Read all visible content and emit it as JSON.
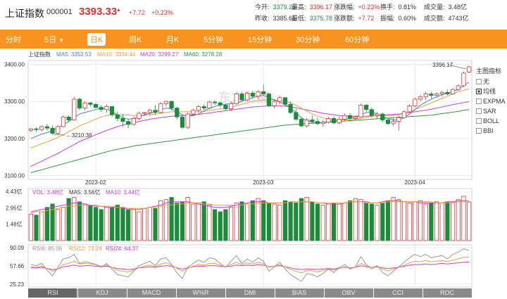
{
  "header": {
    "title": "上证指数",
    "code": "000001",
    "price": "3393.33",
    "change": "+7.72",
    "change_pct": "+0.23%",
    "stats": [
      {
        "key": "今开:",
        "value": "3379.23",
        "color": "green"
      },
      {
        "key": "最高:",
        "value": "3396.17",
        "color": "red"
      },
      {
        "key": "涨跌幅:",
        "value": "+0.23%",
        "color": "red"
      },
      {
        "key": "换手:",
        "value": "0.81%",
        "color": "blk"
      },
      {
        "key": "成交量:",
        "value": "3.48亿",
        "color": "blk"
      },
      {
        "key": "昨收:",
        "value": "3385.61",
        "color": "blk"
      },
      {
        "key": "最低:",
        "value": "3375.78",
        "color": "green"
      },
      {
        "key": "涨跌额:",
        "value": "+7.72",
        "color": "red"
      },
      {
        "key": "振幅:",
        "value": "0.60%",
        "color": "blk"
      },
      {
        "key": "成交额:",
        "value": "4743亿",
        "color": "blk"
      }
    ]
  },
  "tabs": [
    {
      "label": "分时"
    },
    {
      "label": "5日",
      "caret": "▼"
    },
    {
      "label": "日K",
      "active": true
    },
    {
      "label": "周K"
    },
    {
      "label": "月K"
    },
    {
      "label": "5分钟"
    },
    {
      "label": "15分钟"
    },
    {
      "label": "30分钟"
    },
    {
      "label": "60分钟"
    }
  ],
  "main_legend": {
    "name": "上证指数",
    "ma5": "MA5: 3352.53",
    "ma10": "MA10: 3334.44",
    "ma20": "MA20: 3299.27",
    "ma60": "MA60: 3278.28"
  },
  "vol_legend": {
    "vol": "VOL: 3.48亿",
    "ma5": "MA5: 3.56亿",
    "ma10": "MA10: 3.44亿"
  },
  "rsi_legend": {
    "rsi6": "RSI6: 85.06",
    "rsi12": "RSI12: 73.24",
    "rsi24": "RSI24: 64.37"
  },
  "annotations": {
    "high": "3396.17",
    "low": "3210.38"
  },
  "watermark": "东方财富",
  "side_panel": {
    "title": "主图指标",
    "items": [
      {
        "label": "无",
        "checked": false
      },
      {
        "label": "均线",
        "checked": true
      },
      {
        "label": "EXPMA",
        "checked": false
      },
      {
        "label": "SAR",
        "checked": false
      },
      {
        "label": "BOLL",
        "checked": false
      },
      {
        "label": "BBI",
        "checked": false
      }
    ]
  },
  "indicator_tabs": [
    "RSI",
    "KDJ",
    "MACD",
    "W%R",
    "DMI",
    "BIAS",
    "OBV",
    "CCI",
    "ROC"
  ],
  "colors": {
    "up": "#e03030",
    "down": "#1a8c3a",
    "accent": "#f7931e",
    "ma5": "#4a7fd6",
    "ma10": "#e8a23c",
    "ma20": "#d63ad6",
    "ma60": "#2e9a3a"
  },
  "chart_data": {
    "type": "candlestick",
    "price_axis": {
      "ticks": [
        "3400.00",
        "3300.00",
        "3200.00",
        "3100.00"
      ],
      "range": [
        3090,
        3410
      ]
    },
    "volume_axis": {
      "ticks": [
        "4.43亿",
        "2.95亿",
        "1.48亿"
      ]
    },
    "rsi_axis": {
      "ticks": [
        "90.09",
        "57.66",
        "25.23"
      ]
    },
    "x_labels": [
      "2023-02",
      "2023-03",
      "2023-04"
    ],
    "candles": [
      [
        3222,
        3228,
        3217,
        3226
      ],
      [
        3226,
        3230,
        3218,
        3224
      ],
      [
        3224,
        3236,
        3220,
        3232
      ],
      [
        3232,
        3240,
        3222,
        3228
      ],
      [
        3228,
        3235,
        3210,
        3214
      ],
      [
        3214,
        3236,
        3210,
        3232
      ],
      [
        3232,
        3262,
        3230,
        3258
      ],
      [
        3258,
        3262,
        3244,
        3250
      ],
      [
        3250,
        3312,
        3248,
        3306
      ],
      [
        3306,
        3310,
        3276,
        3282
      ],
      [
        3282,
        3300,
        3276,
        3296
      ],
      [
        3296,
        3298,
        3286,
        3292
      ],
      [
        3292,
        3296,
        3280,
        3284
      ],
      [
        3284,
        3290,
        3272,
        3278
      ],
      [
        3278,
        3292,
        3270,
        3286
      ],
      [
        3286,
        3288,
        3258,
        3264
      ],
      [
        3264,
        3272,
        3246,
        3254
      ],
      [
        3254,
        3266,
        3232,
        3246
      ],
      [
        3246,
        3252,
        3228,
        3238
      ],
      [
        3238,
        3258,
        3236,
        3254
      ],
      [
        3254,
        3272,
        3250,
        3268
      ],
      [
        3268,
        3272,
        3260,
        3270
      ],
      [
        3270,
        3280,
        3262,
        3276
      ],
      [
        3276,
        3290,
        3264,
        3270
      ],
      [
        3270,
        3298,
        3268,
        3294
      ],
      [
        3294,
        3302,
        3286,
        3300
      ],
      [
        3300,
        3302,
        3276,
        3282
      ],
      [
        3282,
        3286,
        3252,
        3258
      ],
      [
        3258,
        3262,
        3226,
        3230
      ],
      [
        3230,
        3270,
        3226,
        3266
      ],
      [
        3266,
        3280,
        3260,
        3276
      ],
      [
        3276,
        3290,
        3270,
        3286
      ],
      [
        3286,
        3292,
        3276,
        3282
      ],
      [
        3282,
        3302,
        3278,
        3298
      ],
      [
        3298,
        3304,
        3290,
        3296
      ],
      [
        3296,
        3300,
        3284,
        3290
      ],
      [
        3290,
        3294,
        3276,
        3280
      ],
      [
        3280,
        3300,
        3274,
        3294
      ],
      [
        3294,
        3324,
        3290,
        3320
      ],
      [
        3320,
        3326,
        3300,
        3304
      ],
      [
        3304,
        3326,
        3300,
        3322
      ],
      [
        3322,
        3328,
        3308,
        3314
      ],
      [
        3314,
        3330,
        3306,
        3326
      ],
      [
        3326,
        3346,
        3318,
        3320
      ],
      [
        3320,
        3324,
        3284,
        3288
      ],
      [
        3288,
        3306,
        3282,
        3300
      ],
      [
        3300,
        3316,
        3292,
        3310
      ],
      [
        3310,
        3312,
        3286,
        3292
      ],
      [
        3292,
        3300,
        3266,
        3270
      ],
      [
        3270,
        3280,
        3248,
        3252
      ],
      [
        3252,
        3258,
        3230,
        3234
      ],
      [
        3234,
        3256,
        3230,
        3250
      ],
      [
        3250,
        3262,
        3240,
        3246
      ],
      [
        3246,
        3256,
        3236,
        3240
      ],
      [
        3240,
        3250,
        3232,
        3244
      ],
      [
        3244,
        3258,
        3240,
        3254
      ],
      [
        3254,
        3260,
        3238,
        3242
      ],
      [
        3242,
        3258,
        3238,
        3252
      ],
      [
        3252,
        3268,
        3248,
        3262
      ],
      [
        3262,
        3268,
        3246,
        3254
      ],
      [
        3254,
        3262,
        3248,
        3258
      ],
      [
        3258,
        3294,
        3256,
        3290
      ],
      [
        3290,
        3292,
        3272,
        3278
      ],
      [
        3278,
        3284,
        3256,
        3262
      ],
      [
        3262,
        3272,
        3252,
        3266
      ],
      [
        3266,
        3270,
        3244,
        3250
      ],
      [
        3250,
        3256,
        3236,
        3240
      ],
      [
        3240,
        3254,
        3234,
        3246
      ],
      [
        3246,
        3262,
        3222,
        3256
      ],
      [
        3256,
        3276,
        3254,
        3272
      ],
      [
        3272,
        3292,
        3268,
        3288
      ],
      [
        3288,
        3310,
        3284,
        3306
      ],
      [
        3306,
        3318,
        3300,
        3312
      ],
      [
        3312,
        3326,
        3304,
        3320
      ],
      [
        3320,
        3326,
        3308,
        3316
      ],
      [
        3316,
        3324,
        3310,
        3320
      ],
      [
        3320,
        3328,
        3312,
        3324
      ],
      [
        3324,
        3332,
        3316,
        3320
      ],
      [
        3320,
        3336,
        3318,
        3332
      ],
      [
        3332,
        3346,
        3328,
        3342
      ],
      [
        3342,
        3380,
        3338,
        3376
      ],
      [
        3379,
        3396,
        3376,
        3393
      ]
    ],
    "ma5": [
      3200,
      3206,
      3212,
      3216,
      3222,
      3228,
      3238,
      3246,
      3256,
      3266,
      3270,
      3274,
      3278,
      3282,
      3280,
      3272,
      3264,
      3256,
      3252,
      3254,
      3258,
      3264,
      3268,
      3272,
      3278,
      3282,
      3280,
      3272,
      3264,
      3260,
      3262,
      3266,
      3274,
      3282,
      3286,
      3290,
      3292,
      3294,
      3296,
      3300,
      3306,
      3310,
      3314,
      3316,
      3310,
      3304,
      3298,
      3292,
      3282,
      3270,
      3256,
      3248,
      3244,
      3242,
      3244,
      3246,
      3248,
      3250,
      3252,
      3254,
      3258,
      3264,
      3270,
      3272,
      3266,
      3260,
      3254,
      3250,
      3250,
      3256,
      3266,
      3278,
      3290,
      3298,
      3306,
      3312,
      3318,
      3322,
      3326,
      3332,
      3342,
      3352
    ],
    "ma10": [
      3175,
      3180,
      3186,
      3191,
      3197,
      3203,
      3210,
      3218,
      3226,
      3234,
      3240,
      3246,
      3252,
      3258,
      3262,
      3264,
      3264,
      3264,
      3263,
      3262,
      3262,
      3263,
      3264,
      3266,
      3268,
      3270,
      3272,
      3272,
      3272,
      3272,
      3272,
      3272,
      3273,
      3275,
      3278,
      3280,
      3282,
      3284,
      3288,
      3292,
      3296,
      3300,
      3302,
      3304,
      3304,
      3304,
      3303,
      3300,
      3296,
      3290,
      3282,
      3274,
      3266,
      3260,
      3256,
      3252,
      3250,
      3250,
      3250,
      3250,
      3252,
      3254,
      3257,
      3260,
      3262,
      3262,
      3262,
      3262,
      3264,
      3268,
      3272,
      3278,
      3284,
      3290,
      3296,
      3302,
      3308,
      3314,
      3320,
      3326,
      3330,
      3334
    ],
    "ma20": [
      3125,
      3132,
      3139,
      3146,
      3153,
      3160,
      3168,
      3176,
      3184,
      3192,
      3198,
      3204,
      3210,
      3216,
      3222,
      3227,
      3232,
      3236,
      3240,
      3243,
      3246,
      3249,
      3252,
      3254,
      3256,
      3258,
      3260,
      3261,
      3262,
      3263,
      3264,
      3265,
      3267,
      3269,
      3271,
      3273,
      3275,
      3277,
      3279,
      3281,
      3283,
      3285,
      3286,
      3287,
      3288,
      3288,
      3288,
      3287,
      3285,
      3283,
      3280,
      3277,
      3274,
      3271,
      3268,
      3266,
      3264,
      3262,
      3261,
      3260,
      3260,
      3260,
      3260,
      3261,
      3262,
      3263,
      3264,
      3265,
      3266,
      3268,
      3270,
      3272,
      3274,
      3276,
      3279,
      3282,
      3285,
      3288,
      3291,
      3294,
      3297,
      3299
    ],
    "ma60": [
      3108,
      3112,
      3116,
      3120,
      3124,
      3128,
      3132,
      3136,
      3140,
      3144,
      3148,
      3152,
      3156,
      3160,
      3164,
      3168,
      3171,
      3174,
      3177,
      3180,
      3182,
      3184,
      3186,
      3188,
      3190,
      3192,
      3194,
      3196,
      3198,
      3200,
      3202,
      3204,
      3206,
      3208,
      3210,
      3212,
      3214,
      3216,
      3218,
      3220,
      3222,
      3224,
      3226,
      3228,
      3230,
      3232,
      3234,
      3236,
      3237,
      3238,
      3239,
      3240,
      3241,
      3242,
      3243,
      3244,
      3245,
      3246,
      3247,
      3248,
      3249,
      3250,
      3251,
      3252,
      3253,
      3254,
      3255,
      3256,
      3257,
      3258,
      3259,
      3260,
      3261,
      3262,
      3263,
      3265,
      3267,
      3269,
      3271,
      3273,
      3276,
      3278
    ],
    "volumes": [
      2.4,
      2.3,
      2.6,
      3.0,
      3.3,
      2.8,
      3.0,
      3.8,
      3.9,
      3.5,
      3.3,
      3.2,
      3.0,
      2.8,
      3.1,
      3.0,
      3.2,
      3.0,
      2.8,
      2.9,
      2.6,
      2.9,
      3.0,
      2.9,
      3.6,
      3.7,
      3.9,
      3.4,
      3.5,
      3.9,
      3.3,
      3.4,
      3.5,
      3.2,
      2.8,
      2.6,
      2.8,
      3.0,
      3.4,
      3.5,
      3.3,
      3.6,
      3.8,
      3.6,
      3.4,
      3.3,
      3.2,
      3.6,
      3.5,
      3.4,
      3.8,
      3.9,
      3.5,
      3.3,
      3.2,
      3.3,
      3.4,
      3.3,
      3.4,
      3.6,
      3.8,
      3.7,
      3.4,
      3.3,
      3.2,
      3.4,
      3.6,
      3.9,
      3.7,
      3.5,
      3.4,
      3.5,
      3.6,
      3.3,
      3.4,
      3.5,
      3.4,
      3.5,
      3.5,
      3.7,
      4.0,
      3.48
    ],
    "vol_ma5": [
      2.6,
      2.7,
      2.8,
      2.9,
      3.0,
      3.1,
      3.2,
      3.3,
      3.4,
      3.4,
      3.3,
      3.2,
      3.1,
      3.1,
      3.0,
      3.0,
      3.0,
      2.9,
      2.9,
      2.8,
      2.8,
      2.9,
      3.0,
      3.1,
      3.2,
      3.4,
      3.5,
      3.5,
      3.5,
      3.5,
      3.4,
      3.3,
      3.2,
      3.1,
      3.0,
      3.0,
      3.0,
      3.1,
      3.2,
      3.3,
      3.4,
      3.5,
      3.5,
      3.5,
      3.4,
      3.4,
      3.4,
      3.4,
      3.5,
      3.5,
      3.5,
      3.5,
      3.5,
      3.4,
      3.4,
      3.3,
      3.3,
      3.3,
      3.4,
      3.5,
      3.5,
      3.5,
      3.5,
      3.4,
      3.4,
      3.5,
      3.6,
      3.6,
      3.6,
      3.5,
      3.5,
      3.5,
      3.4,
      3.4,
      3.4,
      3.4,
      3.4,
      3.5,
      3.5,
      3.6,
      3.6,
      3.56
    ],
    "vol_ma10": [
      2.5,
      2.6,
      2.6,
      2.7,
      2.8,
      2.9,
      3.0,
      3.1,
      3.1,
      3.2,
      3.2,
      3.2,
      3.2,
      3.1,
      3.1,
      3.1,
      3.0,
      3.0,
      2.9,
      2.9,
      2.9,
      2.9,
      3.0,
      3.0,
      3.1,
      3.2,
      3.2,
      3.3,
      3.3,
      3.4,
      3.4,
      3.4,
      3.3,
      3.3,
      3.2,
      3.2,
      3.2,
      3.2,
      3.2,
      3.2,
      3.3,
      3.3,
      3.4,
      3.4,
      3.4,
      3.4,
      3.4,
      3.4,
      3.5,
      3.5,
      3.5,
      3.5,
      3.5,
      3.4,
      3.4,
      3.4,
      3.4,
      3.4,
      3.4,
      3.5,
      3.5,
      3.5,
      3.4,
      3.4,
      3.4,
      3.4,
      3.5,
      3.5,
      3.5,
      3.5,
      3.5,
      3.5,
      3.5,
      3.5,
      3.5,
      3.4,
      3.4,
      3.4,
      3.4,
      3.5,
      3.5,
      3.44
    ],
    "rsi6": [
      60,
      58,
      62,
      50,
      40,
      55,
      70,
      72,
      78,
      62,
      65,
      63,
      60,
      55,
      62,
      52,
      42,
      40,
      38,
      48,
      58,
      62,
      66,
      58,
      70,
      72,
      60,
      45,
      35,
      55,
      62,
      68,
      64,
      72,
      70,
      62,
      55,
      66,
      76,
      62,
      70,
      64,
      72,
      66,
      48,
      56,
      64,
      52,
      42,
      36,
      30,
      44,
      42,
      38,
      44,
      52,
      46,
      54,
      60,
      52,
      56,
      74,
      60,
      52,
      58,
      46,
      40,
      48,
      56,
      64,
      72,
      78,
      74,
      78,
      72,
      74,
      76,
      70,
      78,
      82,
      88,
      85.06
    ],
    "rsi12": [
      56,
      55,
      57,
      53,
      48,
      52,
      60,
      62,
      66,
      61,
      62,
      61,
      60,
      57,
      59,
      55,
      50,
      48,
      47,
      50,
      54,
      57,
      59,
      56,
      61,
      63,
      59,
      53,
      48,
      53,
      57,
      60,
      59,
      62,
      62,
      59,
      56,
      60,
      64,
      60,
      63,
      61,
      64,
      62,
      55,
      57,
      60,
      56,
      51,
      48,
      45,
      49,
      49,
      47,
      49,
      52,
      50,
      53,
      56,
      53,
      55,
      62,
      58,
      55,
      57,
      52,
      49,
      52,
      55,
      59,
      63,
      66,
      65,
      67,
      65,
      66,
      67,
      65,
      68,
      70,
      73,
      73.24
    ],
    "rsi24": [
      54,
      54,
      55,
      53,
      51,
      52,
      56,
      57,
      59,
      57,
      58,
      58,
      57,
      56,
      57,
      55,
      53,
      52,
      51,
      52,
      54,
      55,
      56,
      55,
      57,
      58,
      57,
      54,
      52,
      54,
      56,
      57,
      57,
      58,
      58,
      57,
      56,
      57,
      59,
      58,
      59,
      58,
      60,
      59,
      56,
      57,
      58,
      56,
      54,
      52,
      51,
      52,
      52,
      51,
      52,
      53,
      52,
      54,
      55,
      54,
      55,
      58,
      56,
      55,
      56,
      54,
      53,
      54,
      55,
      57,
      59,
      60,
      60,
      61,
      60,
      61,
      62,
      61,
      62,
      63,
      64,
      64.37
    ]
  }
}
